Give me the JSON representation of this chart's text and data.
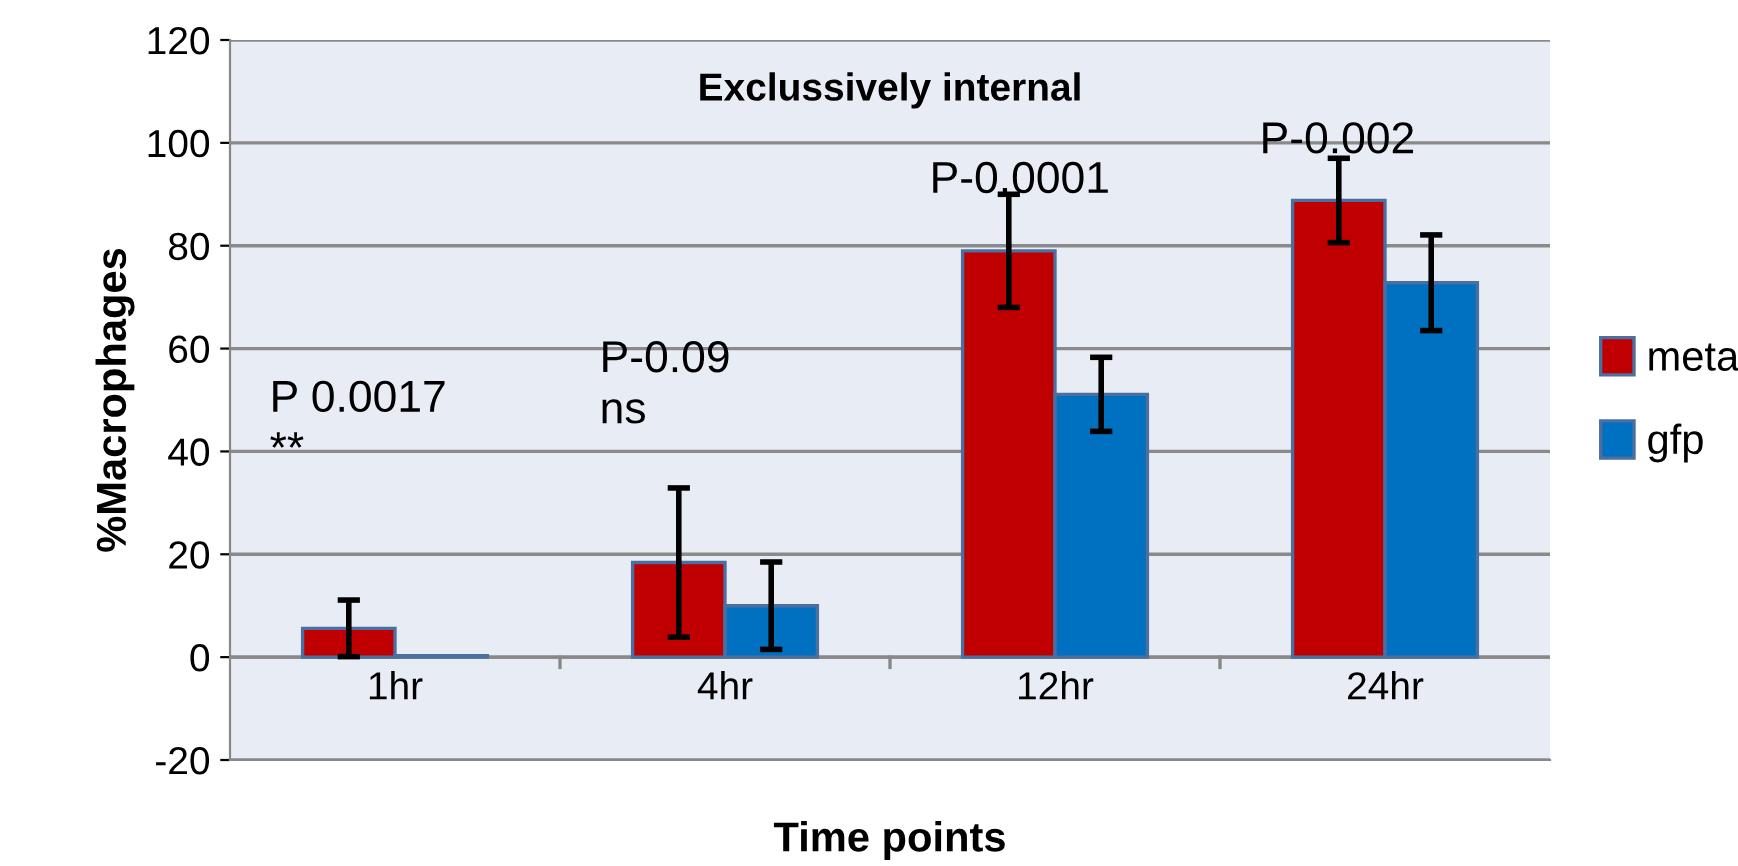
{
  "chart_data": {
    "type": "bar",
    "title": "Exclussively internal",
    "xlabel": "Time points",
    "ylabel": "%Macrophages",
    "categories": [
      "1hr",
      "4hr",
      "12hr",
      "24hr"
    ],
    "series": [
      {
        "name": "meta",
        "color": "#c00000",
        "values": [
          5.6,
          18.4,
          79,
          88.8
        ],
        "errors": [
          5.5,
          14.5,
          11,
          8.2
        ]
      },
      {
        "name": "gfp",
        "color": "#0070c0",
        "values": [
          0.3,
          10,
          51.1,
          72.8
        ],
        "errors": [
          null,
          8.5,
          7.2,
          9.3
        ]
      }
    ],
    "ylim": [
      -20,
      120
    ],
    "yticks": [
      -20,
      0,
      20,
      40,
      60,
      80,
      100,
      120
    ],
    "grid": "y",
    "legend": "right",
    "annotations": [
      "P 0.0017\n**",
      "P-0.09\nns",
      "P-0.0001",
      "P-0.002"
    ]
  }
}
